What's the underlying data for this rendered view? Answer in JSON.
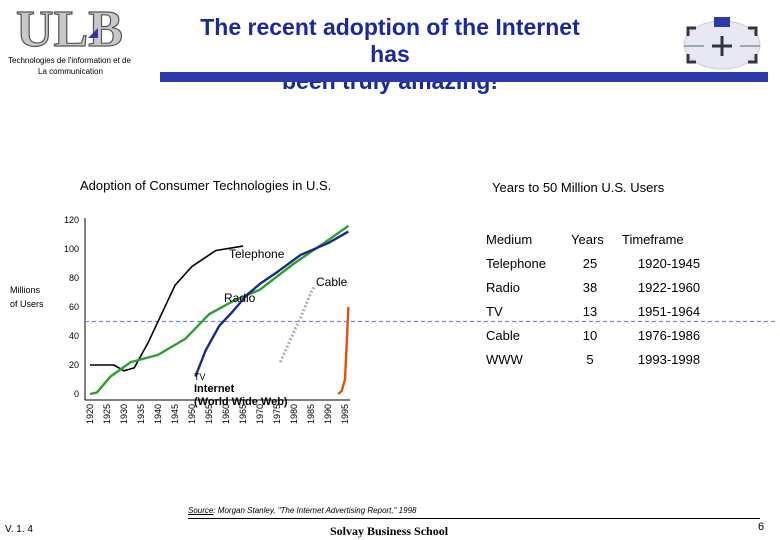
{
  "header": {
    "logo_text": "ULB",
    "logo_sub_line1": "Technologies de l'information et de",
    "logo_sub_line2": "La communication",
    "title_line1": "The recent adoption of the Internet has",
    "title_line2": "been truly amazing!",
    "colors": {
      "title": "#1a2a9a",
      "bar": "#2b3aa8"
    }
  },
  "chart_data": {
    "type": "line",
    "title": "Adoption of Consumer Technologies in U.S.",
    "ylabel_line1": "Millions",
    "ylabel_line2": "of Users",
    "ylim": [
      0,
      120
    ],
    "yticks": [
      "120",
      "100",
      "80",
      "60",
      "40",
      "20",
      "0"
    ],
    "xticks": [
      "1920",
      "1925",
      "1930",
      "1935",
      "1940",
      "1945",
      "1950",
      "1955",
      "1960",
      "1965",
      "1970",
      "1975",
      "1980",
      "1985",
      "1990",
      "1995"
    ],
    "reference_line": 50,
    "labels": {
      "telephone": "Telephone",
      "cable": "Cable",
      "radio": "Radio",
      "tv": "TV",
      "internet_line1": "Internet",
      "internet_line2": "(World Wide Web)"
    },
    "series": [
      {
        "name": "Telephone",
        "color": "#000000",
        "x": [
          1920,
          1927,
          1930,
          1933,
          1937,
          1945,
          1950,
          1957,
          1965
        ],
        "values": [
          20,
          20,
          16,
          18,
          35,
          75,
          88,
          99,
          102
        ]
      },
      {
        "name": "Radio",
        "color": "#2ca02c",
        "x": [
          1920,
          1922,
          1926,
          1932,
          1940,
          1948,
          1955,
          1962,
          1970,
          1980,
          1990,
          1996
        ],
        "values": [
          0,
          1,
          12,
          22,
          27,
          38,
          55,
          64,
          72,
          90,
          106,
          116
        ]
      },
      {
        "name": "TV",
        "color": "#1a2a8a",
        "x": [
          1951,
          1954,
          1958,
          1962,
          1966,
          1970,
          1975,
          1982,
          1990,
          1996
        ],
        "values": [
          12,
          30,
          47,
          57,
          68,
          76,
          84,
          96,
          104,
          112
        ]
      },
      {
        "name": "Cable",
        "color": "#b0b0b0",
        "x": [
          1976,
          1979,
          1982,
          1985,
          1986
        ],
        "values": [
          22,
          38,
          53,
          70,
          74
        ]
      },
      {
        "name": "WWW",
        "color": "#e05010",
        "x": [
          1993,
          1994,
          1995,
          1996
        ],
        "values": [
          0,
          2,
          10,
          60
        ]
      }
    ]
  },
  "table": {
    "title": "Years to 50 Million U.S. Users",
    "headers": [
      "Medium",
      "Years",
      "Timeframe"
    ],
    "rows": [
      [
        "Telephone",
        "25",
        "1920-1945"
      ],
      [
        "Radio",
        "38",
        "1922-1960"
      ],
      [
        "TV",
        "13",
        "1951-1964"
      ],
      [
        "Cable",
        "10",
        "1976-1986"
      ],
      [
        "WWW",
        "5",
        "1993-1998"
      ]
    ]
  },
  "footer": {
    "source_prefix": "Source",
    "source_text": ": Morgan Stanley, \"The Internet Advertising Report,\" 1998",
    "version": "V. 1. 4",
    "school": "Solvay Business School",
    "page_number": "6"
  }
}
